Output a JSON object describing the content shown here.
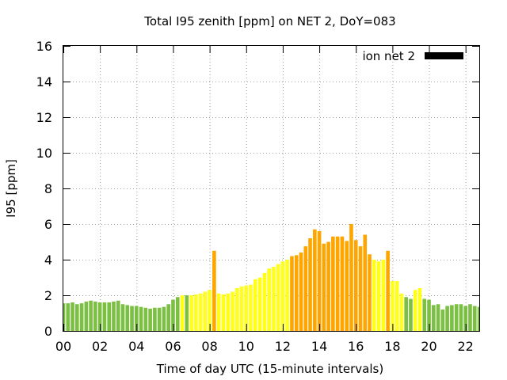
{
  "chart_data": {
    "type": "bar",
    "title": "Total I95 zenith [ppm] on NET 2, DoY=083",
    "xlabel": "Time of day UTC (15-minute intervals)",
    "ylabel": "I95 [ppm]",
    "xlim": [
      0,
      22.75
    ],
    "ylim": [
      0,
      16
    ],
    "grid": true,
    "legend": {
      "position": "top-right",
      "label": "ion net 2",
      "color": "#000000"
    },
    "x_ticks": [
      "00",
      "02",
      "04",
      "06",
      "08",
      "10",
      "12",
      "14",
      "16",
      "18",
      "20",
      "22"
    ],
    "y_ticks": [
      "0",
      "2",
      "4",
      "6",
      "8",
      "10",
      "12",
      "14",
      "16"
    ],
    "bar_width_hours": 0.2,
    "color_scale": {
      "low": "#7bc043",
      "moderate": "#ffff1a",
      "high": "#ffa500"
    },
    "x": [
      0,
      0.25,
      0.5,
      0.75,
      1,
      1.25,
      1.5,
      1.75,
      2,
      2.25,
      2.5,
      2.75,
      3,
      3.25,
      3.5,
      3.75,
      4,
      4.25,
      4.5,
      4.75,
      5,
      5.25,
      5.5,
      5.75,
      6,
      6.25,
      6.5,
      6.75,
      7,
      7.25,
      7.5,
      7.75,
      8,
      8.25,
      8.5,
      8.75,
      9,
      9.25,
      9.5,
      9.75,
      10,
      10.25,
      10.5,
      10.75,
      11,
      11.25,
      11.5,
      11.75,
      12,
      12.25,
      12.5,
      12.75,
      13,
      13.25,
      13.5,
      13.75,
      14,
      14.25,
      14.5,
      14.75,
      15,
      15.25,
      15.5,
      15.75,
      16,
      16.25,
      16.5,
      16.75,
      17,
      17.25,
      17.5,
      17.75,
      18,
      18.25,
      18.5,
      18.75,
      19,
      19.25,
      19.5,
      19.75,
      20,
      20.25,
      20.5,
      20.75,
      21,
      21.25,
      21.5,
      21.75,
      22,
      22.25,
      22.5,
      22.75
    ],
    "values": [
      1.55,
      1.55,
      1.6,
      1.5,
      1.55,
      1.65,
      1.7,
      1.65,
      1.6,
      1.6,
      1.6,
      1.65,
      1.7,
      1.5,
      1.45,
      1.4,
      1.4,
      1.35,
      1.3,
      1.25,
      1.3,
      1.3,
      1.35,
      1.5,
      1.75,
      1.9,
      2.0,
      2.0,
      2.0,
      2.05,
      2.1,
      2.2,
      2.3,
      4.5,
      2.1,
      2.05,
      2.1,
      2.2,
      2.4,
      2.5,
      2.55,
      2.6,
      2.9,
      3.0,
      3.25,
      3.5,
      3.6,
      3.75,
      3.9,
      4.0,
      4.2,
      4.25,
      4.4,
      4.75,
      5.2,
      5.7,
      5.6,
      4.9,
      5.0,
      5.3,
      5.3,
      5.3,
      5.05,
      6.0,
      5.1,
      4.75,
      5.4,
      4.3,
      4.0,
      3.9,
      4.0,
      4.5,
      2.8,
      2.8,
      2.1,
      1.9,
      1.8,
      2.3,
      2.4,
      1.8,
      1.75,
      1.45,
      1.5,
      1.2,
      1.4,
      1.45,
      1.5,
      1.5,
      1.4,
      1.5,
      1.4,
      1.35
    ],
    "bar_levels": [
      "low",
      "low",
      "low",
      "low",
      "low",
      "low",
      "low",
      "low",
      "low",
      "low",
      "low",
      "low",
      "low",
      "low",
      "low",
      "low",
      "low",
      "low",
      "low",
      "low",
      "low",
      "low",
      "low",
      "low",
      "low",
      "low",
      "moderate",
      "low",
      "moderate",
      "moderate",
      "moderate",
      "moderate",
      "moderate",
      "high",
      "moderate",
      "moderate",
      "moderate",
      "moderate",
      "moderate",
      "moderate",
      "moderate",
      "moderate",
      "moderate",
      "moderate",
      "moderate",
      "moderate",
      "moderate",
      "moderate",
      "moderate",
      "moderate",
      "high",
      "high",
      "high",
      "high",
      "high",
      "high",
      "high",
      "high",
      "high",
      "high",
      "high",
      "high",
      "high",
      "high",
      "high",
      "high",
      "high",
      "high",
      "moderate",
      "moderate",
      "moderate",
      "high",
      "moderate",
      "moderate",
      "moderate",
      "low",
      "low",
      "moderate",
      "moderate",
      "low",
      "low",
      "low",
      "low",
      "low",
      "low",
      "low",
      "low",
      "low",
      "low",
      "low",
      "low",
      "low"
    ]
  }
}
